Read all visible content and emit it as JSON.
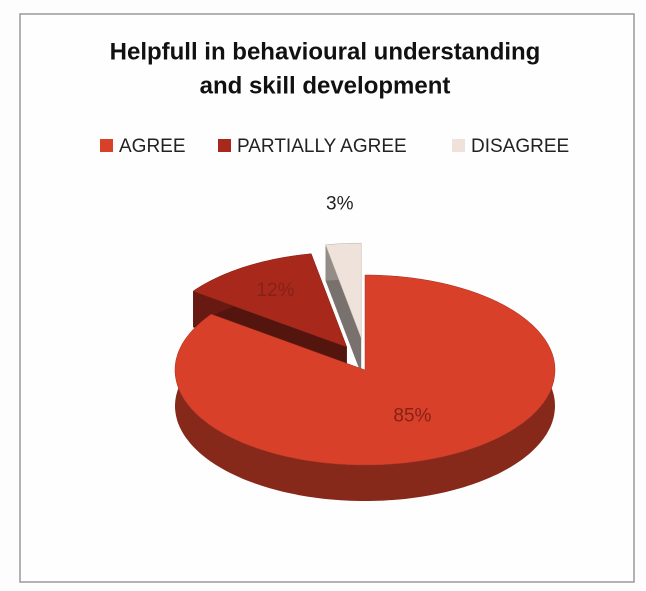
{
  "chart_data": {
    "type": "pie",
    "title": [
      "Helpfull in behavioural understanding",
      "and skill development"
    ],
    "categories": [
      "AGREE",
      "PARTIALLY AGREE",
      "DISAGREE"
    ],
    "values": [
      85,
      12,
      3
    ],
    "value_labels": [
      "85%",
      "12%",
      "3%"
    ],
    "colors": [
      "#d8402a",
      "#a8291c",
      "#efe2da"
    ],
    "legend": "top"
  }
}
